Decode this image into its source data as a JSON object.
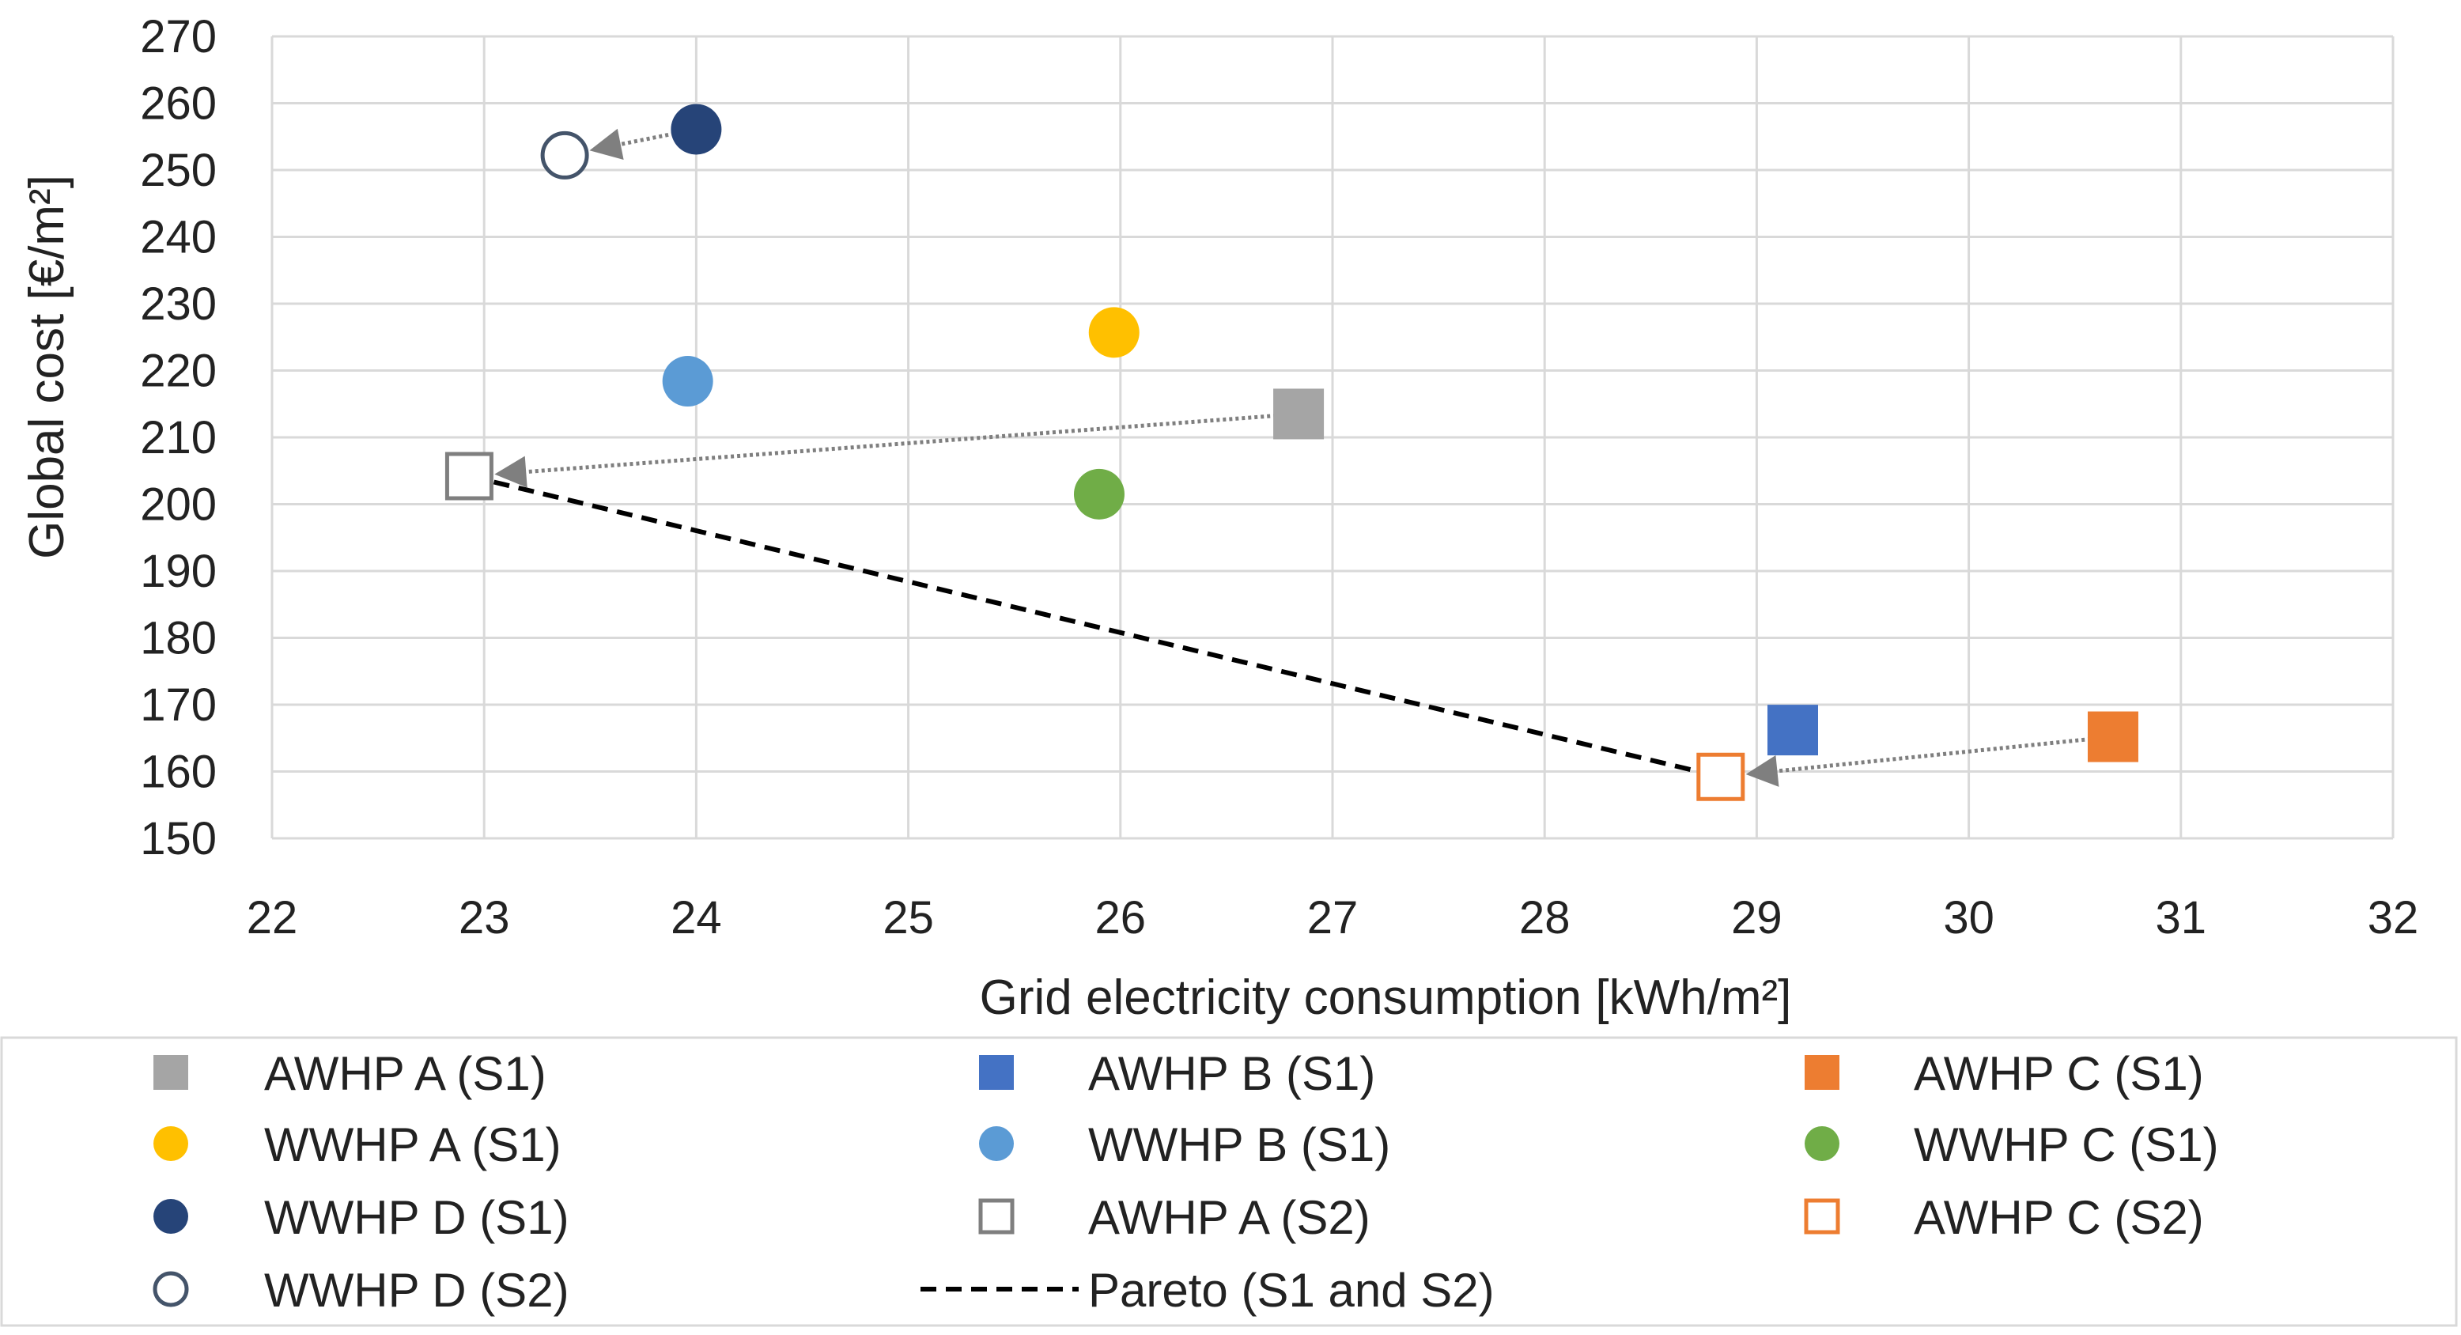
{
  "chart_data": {
    "type": "scatter",
    "xlabel": "Grid electricity consumption [kWh/m²]",
    "ylabel": "Global cost [€/m²]",
    "xlim": [
      22,
      32
    ],
    "ylim": [
      150,
      270
    ],
    "xticks": [
      22,
      23,
      24,
      25,
      26,
      27,
      28,
      29,
      30,
      31,
      32
    ],
    "yticks": [
      150,
      160,
      170,
      180,
      190,
      200,
      210,
      220,
      230,
      240,
      250,
      260,
      270
    ],
    "grid": true,
    "legend_position": "bottom",
    "series": [
      {
        "name": "AWHP A (S1)",
        "marker": "square",
        "filled": true,
        "color": "#A5A5A5",
        "x": 26.84,
        "y": 213.5
      },
      {
        "name": "AWHP B (S1)",
        "marker": "square",
        "filled": true,
        "color": "#4472C4",
        "x": 29.17,
        "y": 166.2
      },
      {
        "name": "AWHP C (S1)",
        "marker": "square",
        "filled": true,
        "color": "#ED7D31",
        "x": 30.68,
        "y": 165.2
      },
      {
        "name": "WWHP A (S1)",
        "marker": "circle",
        "filled": true,
        "color": "#FFC000",
        "x": 25.97,
        "y": 225.7
      },
      {
        "name": "WWHP B (S1)",
        "marker": "circle",
        "filled": true,
        "color": "#5B9BD5",
        "x": 23.96,
        "y": 218.4
      },
      {
        "name": "WWHP C (S1)",
        "marker": "circle",
        "filled": true,
        "color": "#70AD47",
        "x": 25.9,
        "y": 201.5
      },
      {
        "name": "WWHP D (S1)",
        "marker": "circle",
        "filled": true,
        "color": "#264478",
        "x": 24.0,
        "y": 256.1
      },
      {
        "name": "AWHP A (S2)",
        "marker": "square",
        "filled": false,
        "color": "#7F7F7F",
        "x": 22.93,
        "y": 204.2
      },
      {
        "name": "AWHP C (S2)",
        "marker": "square",
        "filled": false,
        "color": "#ED7D31",
        "x": 28.83,
        "y": 159.2
      },
      {
        "name": "WWHP D (S2)",
        "marker": "circle",
        "filled": false,
        "color": "#44546A",
        "x": 23.38,
        "y": 252.2
      }
    ],
    "pareto": {
      "name": "Pareto (S1 and S2)",
      "color": "#000000",
      "x": [
        22.93,
        28.83
      ],
      "y": [
        204.2,
        159.2
      ]
    },
    "arrows": [
      {
        "from": [
          24.0,
          256.1
        ],
        "to": [
          23.38,
          252.2
        ]
      },
      {
        "from": [
          26.84,
          213.5
        ],
        "to": [
          22.93,
          204.2
        ]
      },
      {
        "from": [
          30.68,
          165.2
        ],
        "to": [
          28.83,
          159.2
        ]
      }
    ],
    "legend_order": [
      "AWHP A (S1)",
      "AWHP B (S1)",
      "AWHP C (S1)",
      "WWHP A (S1)",
      "WWHP B (S1)",
      "WWHP C (S1)",
      "WWHP D (S1)",
      "AWHP A (S2)",
      "AWHP C (S2)",
      "WWHP D (S2)",
      "Pareto (S1 and S2)"
    ]
  }
}
